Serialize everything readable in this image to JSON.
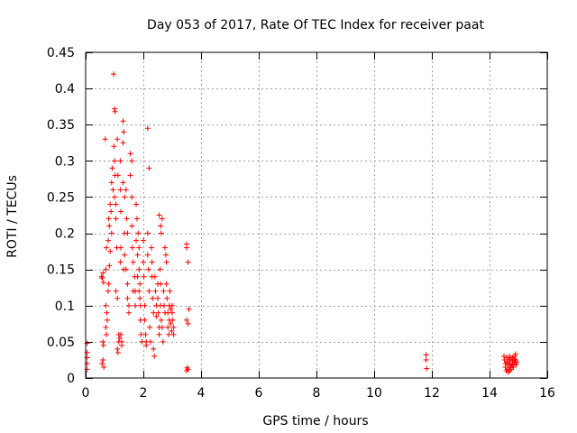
{
  "chart_data": {
    "type": "scatter",
    "title": "Day 053 of 2017, Rate Of TEC Index for receiver paat",
    "xlabel": "GPS time / hours",
    "ylabel": "ROTI / TECUs",
    "xlim": [
      0,
      16
    ],
    "ylim": [
      0,
      0.45
    ],
    "xticks": [
      0,
      2,
      4,
      6,
      8,
      10,
      12,
      14,
      16
    ],
    "yticks": [
      0,
      0.05,
      0.1,
      0.15,
      0.2,
      0.25,
      0.3,
      0.35,
      0.4,
      0.45
    ],
    "xtick_labels": [
      "0",
      "2",
      "4",
      "6",
      "8",
      "10",
      "12",
      "14",
      "16"
    ],
    "ytick_labels": [
      "0",
      "0.05",
      "0.1",
      "0.15",
      "0.2",
      "0.25",
      "0.3",
      "0.35",
      "0.4",
      "0.45"
    ],
    "grid": true,
    "marker": "+",
    "color": "#ff0000",
    "series": [
      {
        "name": "ROTI",
        "points": [
          [
            0.05,
            0.048
          ],
          [
            0.05,
            0.02
          ],
          [
            0.05,
            0.028
          ],
          [
            0.05,
            0.035
          ],
          [
            0.05,
            0.012
          ],
          [
            0.55,
            0.14
          ],
          [
            0.58,
            0.138
          ],
          [
            0.6,
            0.145
          ],
          [
            0.62,
            0.132
          ],
          [
            0.57,
            0.02
          ],
          [
            0.6,
            0.025
          ],
          [
            0.63,
            0.015
          ],
          [
            0.6,
            0.05
          ],
          [
            0.62,
            0.045
          ],
          [
            0.68,
            0.33
          ],
          [
            0.7,
            0.15
          ],
          [
            0.72,
            0.18
          ],
          [
            0.7,
            0.1
          ],
          [
            0.73,
            0.09
          ],
          [
            0.75,
            0.08
          ],
          [
            0.7,
            0.07
          ],
          [
            0.72,
            0.06
          ],
          [
            0.78,
            0.19
          ],
          [
            0.8,
            0.22
          ],
          [
            0.82,
            0.21
          ],
          [
            0.78,
            0.12
          ],
          [
            0.8,
            0.13
          ],
          [
            0.85,
            0.24
          ],
          [
            0.82,
            0.155
          ],
          [
            0.85,
            0.175
          ],
          [
            0.9,
            0.27
          ],
          [
            0.92,
            0.29
          ],
          [
            0.88,
            0.23
          ],
          [
            0.9,
            0.2
          ],
          [
            0.95,
            0.26
          ],
          [
            0.97,
            0.42
          ],
          [
            1.0,
            0.372
          ],
          [
            1.02,
            0.368
          ],
          [
            0.98,
            0.32
          ],
          [
            1.0,
            0.3
          ],
          [
            1.0,
            0.25
          ],
          [
            1.02,
            0.28
          ],
          [
            1.05,
            0.24
          ],
          [
            1.05,
            0.22
          ],
          [
            1.05,
            0.12
          ],
          [
            1.08,
            0.18
          ],
          [
            1.1,
            0.33
          ],
          [
            1.12,
            0.28
          ],
          [
            1.1,
            0.11
          ],
          [
            1.1,
            0.04
          ],
          [
            1.12,
            0.035
          ],
          [
            1.15,
            0.06
          ],
          [
            1.15,
            0.05
          ],
          [
            1.18,
            0.055
          ],
          [
            1.2,
            0.3
          ],
          [
            1.2,
            0.26
          ],
          [
            1.22,
            0.23
          ],
          [
            1.22,
            0.06
          ],
          [
            1.25,
            0.05
          ],
          [
            1.25,
            0.045
          ],
          [
            1.2,
            0.16
          ],
          [
            1.22,
            0.18
          ],
          [
            1.3,
            0.355
          ],
          [
            1.32,
            0.34
          ],
          [
            1.3,
            0.325
          ],
          [
            1.3,
            0.27
          ],
          [
            1.35,
            0.25
          ],
          [
            1.35,
            0.2
          ],
          [
            1.35,
            0.17
          ],
          [
            1.32,
            0.15
          ],
          [
            1.4,
            0.26
          ],
          [
            1.42,
            0.22
          ],
          [
            1.45,
            0.2
          ],
          [
            1.4,
            0.15
          ],
          [
            1.45,
            0.13
          ],
          [
            1.45,
            0.11
          ],
          [
            1.5,
            0.1
          ],
          [
            1.5,
            0.09
          ],
          [
            1.55,
            0.31
          ],
          [
            1.6,
            0.3
          ],
          [
            1.55,
            0.28
          ],
          [
            1.6,
            0.25
          ],
          [
            1.6,
            0.21
          ],
          [
            1.62,
            0.18
          ],
          [
            1.65,
            0.16
          ],
          [
            1.65,
            0.12
          ],
          [
            1.7,
            0.14
          ],
          [
            1.72,
            0.12
          ],
          [
            1.72,
            0.1
          ],
          [
            1.75,
            0.24
          ],
          [
            1.78,
            0.22
          ],
          [
            1.75,
            0.19
          ],
          [
            1.8,
            0.17
          ],
          [
            1.8,
            0.14
          ],
          [
            1.82,
            0.2
          ],
          [
            1.85,
            0.18
          ],
          [
            1.85,
            0.15
          ],
          [
            1.88,
            0.13
          ],
          [
            1.9,
            0.1
          ],
          [
            1.9,
            0.08
          ],
          [
            1.92,
            0.06
          ],
          [
            1.95,
            0.05
          ],
          [
            1.85,
            0.12
          ],
          [
            1.88,
            0.11
          ],
          [
            2.0,
            0.19
          ],
          [
            2.0,
            0.16
          ],
          [
            2.02,
            0.14
          ],
          [
            2.05,
            0.1
          ],
          [
            2.05,
            0.08
          ],
          [
            2.08,
            0.06
          ],
          [
            2.1,
            0.05
          ],
          [
            2.1,
            0.045
          ],
          [
            2.15,
            0.345
          ],
          [
            2.15,
            0.2
          ],
          [
            2.15,
            0.17
          ],
          [
            2.18,
            0.15
          ],
          [
            2.2,
            0.29
          ],
          [
            2.2,
            0.12
          ],
          [
            2.22,
            0.07
          ],
          [
            2.25,
            0.05
          ],
          [
            2.28,
            0.18
          ],
          [
            2.3,
            0.16
          ],
          [
            2.3,
            0.14
          ],
          [
            2.32,
            0.11
          ],
          [
            2.35,
            0.09
          ],
          [
            2.35,
            0.04
          ],
          [
            2.38,
            0.03
          ],
          [
            2.4,
            0.14
          ],
          [
            2.42,
            0.12
          ],
          [
            2.45,
            0.1
          ],
          [
            2.45,
            0.085
          ],
          [
            2.5,
            0.13
          ],
          [
            2.5,
            0.11
          ],
          [
            2.52,
            0.09
          ],
          [
            2.55,
            0.07
          ],
          [
            2.55,
            0.06
          ],
          [
            2.58,
            0.15
          ],
          [
            2.6,
            0.13
          ],
          [
            2.6,
            0.1
          ],
          [
            2.62,
            0.08
          ],
          [
            2.65,
            0.07
          ],
          [
            2.65,
            0.22
          ],
          [
            2.55,
            0.225
          ],
          [
            2.6,
            0.21
          ],
          [
            2.62,
            0.2
          ],
          [
            2.68,
            0.05
          ],
          [
            2.7,
            0.12
          ],
          [
            2.72,
            0.1
          ],
          [
            2.75,
            0.09
          ],
          [
            2.75,
            0.18
          ],
          [
            2.78,
            0.17
          ],
          [
            2.8,
            0.16
          ],
          [
            2.8,
            0.13
          ],
          [
            2.82,
            0.11
          ],
          [
            2.85,
            0.09
          ],
          [
            2.85,
            0.07
          ],
          [
            2.88,
            0.06
          ],
          [
            2.9,
            0.1
          ],
          [
            2.9,
            0.08
          ],
          [
            2.92,
            0.12
          ],
          [
            2.95,
            0.095
          ],
          [
            2.95,
            0.075
          ],
          [
            2.98,
            0.065
          ],
          [
            3.0,
            0.09
          ],
          [
            3.0,
            0.1
          ],
          [
            3.02,
            0.08
          ],
          [
            3.05,
            0.07
          ],
          [
            3.05,
            0.06
          ],
          [
            3.5,
            0.185
          ],
          [
            3.5,
            0.18
          ],
          [
            3.55,
            0.16
          ],
          [
            3.5,
            0.08
          ],
          [
            3.55,
            0.075
          ],
          [
            3.5,
            0.01
          ],
          [
            3.55,
            0.012
          ],
          [
            3.52,
            0.014
          ],
          [
            3.58,
            0.095
          ],
          [
            11.8,
            0.032
          ],
          [
            11.8,
            0.025
          ],
          [
            11.82,
            0.013
          ],
          [
            14.5,
            0.03
          ],
          [
            14.52,
            0.025
          ],
          [
            14.55,
            0.02
          ],
          [
            14.55,
            0.015
          ],
          [
            14.58,
            0.01
          ],
          [
            14.6,
            0.028
          ],
          [
            14.6,
            0.022
          ],
          [
            14.62,
            0.018
          ],
          [
            14.62,
            0.012
          ],
          [
            14.65,
            0.008
          ],
          [
            14.65,
            0.025
          ],
          [
            14.68,
            0.02
          ],
          [
            14.68,
            0.015
          ],
          [
            14.7,
            0.01
          ],
          [
            14.7,
            0.03
          ],
          [
            14.72,
            0.026
          ],
          [
            14.72,
            0.02
          ],
          [
            14.75,
            0.014
          ],
          [
            14.75,
            0.012
          ],
          [
            14.78,
            0.018
          ],
          [
            14.78,
            0.024
          ],
          [
            14.8,
            0.028
          ],
          [
            14.8,
            0.02
          ],
          [
            14.82,
            0.015
          ],
          [
            14.85,
            0.02
          ],
          [
            14.85,
            0.026
          ],
          [
            14.88,
            0.03
          ],
          [
            14.88,
            0.022
          ],
          [
            14.9,
            0.033
          ],
          [
            14.9,
            0.025
          ],
          [
            14.92,
            0.018
          ],
          [
            14.95,
            0.022
          ]
        ]
      }
    ]
  }
}
